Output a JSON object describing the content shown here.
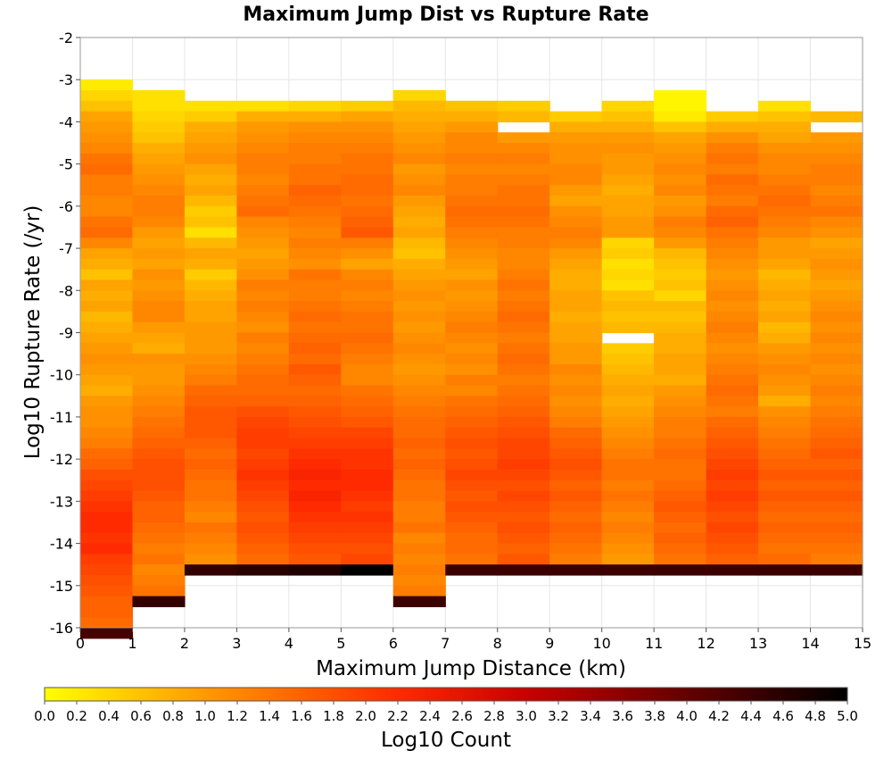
{
  "chart_data": {
    "type": "heatmap",
    "title": "Maximum Jump Dist vs Rupture Rate",
    "xlabel": "Maximum Jump Distance (km)",
    "ylabel": "Log10 Rupture Rate (/yr)",
    "xlim": [
      0,
      15
    ],
    "ylim": [
      -16,
      -2
    ],
    "x_ticks": [
      "0",
      "1",
      "2",
      "3",
      "4",
      "5",
      "6",
      "7",
      "8",
      "9",
      "10",
      "11",
      "12",
      "13",
      "14",
      "15"
    ],
    "y_ticks": [
      "-2",
      "-3",
      "-4",
      "-5",
      "-6",
      "-7",
      "-8",
      "-9",
      "-10",
      "-11",
      "-12",
      "-13",
      "-14",
      "-15",
      "-16"
    ],
    "x_bin_width": 1,
    "y_bin_height": 0.25,
    "colorbar": {
      "label": "Log10 Count",
      "min": 0.0,
      "max": 5.0,
      "ticks": [
        "0.0",
        "0.2",
        "0.4",
        "0.6",
        "0.8",
        "1.0",
        "1.2",
        "1.4",
        "1.6",
        "1.8",
        "2.0",
        "2.2",
        "2.4",
        "2.6",
        "2.8",
        "3.0",
        "3.2",
        "3.4",
        "3.6",
        "3.8",
        "4.0",
        "4.2",
        "4.4",
        "4.6",
        "4.8",
        "5.0"
      ],
      "colors": [
        "#ffff00",
        "#ff9900",
        "#ff2a00",
        "#c80000",
        "#000000"
      ]
    },
    "columns": [
      {
        "x0": 0,
        "top": -3.0,
        "values": [
          0.2,
          0.4,
          0.6,
          0.9,
          1.0,
          1.1,
          1.2,
          1.4,
          1.5,
          1.3,
          1.3,
          1.2,
          1.2,
          1.4,
          1.5,
          1.2,
          0.9,
          0.8,
          0.6,
          0.9,
          0.8,
          0.9,
          0.7,
          0.8,
          0.9,
          1.0,
          1.1,
          1.0,
          0.9,
          0.8,
          1.0,
          1.1,
          1.1,
          1.2,
          1.3,
          1.5,
          1.6,
          1.8,
          1.9,
          2.0,
          2.1,
          2.2,
          2.2,
          2.1,
          2.2,
          2.0,
          1.9,
          1.8,
          1.7,
          1.6,
          1.6,
          1.5,
          4.3
        ]
      },
      {
        "x0": 1,
        "top": -3.25,
        "values": [
          0.3,
          0.3,
          0.4,
          0.5,
          0.6,
          0.8,
          0.9,
          1.0,
          1.1,
          1.2,
          1.3,
          1.3,
          1.2,
          1.0,
          0.9,
          1.0,
          0.9,
          1.1,
          1.0,
          1.1,
          1.2,
          1.2,
          1.0,
          0.9,
          0.8,
          1.1,
          1.0,
          1.0,
          1.1,
          1.2,
          1.3,
          1.4,
          1.5,
          1.6,
          1.7,
          1.8,
          1.8,
          1.8,
          1.7,
          1.6,
          1.6,
          1.5,
          1.4,
          1.3,
          1.4,
          1.2,
          1.3,
          1.4,
          4.5
        ]
      },
      {
        "x0": 2,
        "top": -3.5,
        "values": [
          0.3,
          0.5,
          0.8,
          0.9,
          1.0,
          1.1,
          0.9,
          0.8,
          0.9,
          0.7,
          0.5,
          0.6,
          0.3,
          0.7,
          0.9,
          0.8,
          0.5,
          0.7,
          0.8,
          0.9,
          0.9,
          1.0,
          1.0,
          1.0,
          1.1,
          1.2,
          1.3,
          1.5,
          1.6,
          1.7,
          1.7,
          1.7,
          1.6,
          1.5,
          1.6,
          1.5,
          1.4,
          1.4,
          1.3,
          1.2,
          1.4,
          1.3,
          1.2,
          1.1,
          4.5
        ]
      },
      {
        "x0": 3,
        "top": -3.5,
        "values": [
          0.3,
          0.8,
          1.0,
          1.1,
          1.2,
          1.3,
          1.3,
          1.2,
          1.3,
          1.4,
          1.5,
          1.2,
          1.1,
          1.0,
          0.9,
          1.0,
          1.1,
          1.3,
          1.2,
          1.3,
          1.2,
          1.1,
          1.3,
          1.2,
          1.3,
          1.4,
          1.5,
          1.5,
          1.6,
          1.8,
          1.9,
          2.0,
          2.0,
          1.9,
          2.0,
          2.1,
          2.0,
          1.9,
          1.8,
          1.7,
          1.8,
          1.7,
          1.6,
          1.5,
          4.6
        ]
      },
      {
        "x0": 4,
        "top": -3.5,
        "values": [
          0.4,
          0.8,
          1.1,
          1.2,
          1.3,
          1.3,
          1.4,
          1.4,
          1.6,
          1.5,
          1.4,
          1.3,
          1.2,
          1.3,
          1.2,
          1.1,
          1.4,
          1.3,
          1.3,
          1.4,
          1.5,
          1.4,
          1.5,
          1.6,
          1.5,
          1.7,
          1.6,
          1.5,
          1.6,
          1.7,
          1.8,
          1.9,
          2.0,
          2.1,
          2.2,
          2.3,
          2.2,
          2.3,
          2.2,
          2.1,
          2.0,
          1.9,
          1.8,
          1.7,
          4.7
        ]
      },
      {
        "x0": 5,
        "top": -3.5,
        "values": [
          0.5,
          0.9,
          1.1,
          1.2,
          1.3,
          1.4,
          1.4,
          1.5,
          1.5,
          1.4,
          1.5,
          1.6,
          1.7,
          1.3,
          1.1,
          0.9,
          1.2,
          1.3,
          1.2,
          1.3,
          1.4,
          1.4,
          1.5,
          1.4,
          1.3,
          1.2,
          1.2,
          1.4,
          1.5,
          1.6,
          1.7,
          1.9,
          2.0,
          2.1,
          2.1,
          2.2,
          2.2,
          2.1,
          2.0,
          2.1,
          2.0,
          1.9,
          1.8,
          1.9,
          5.0
        ]
      },
      {
        "x0": 6,
        "top": -3.25,
        "values": [
          0.4,
          0.7,
          0.8,
          0.9,
          1.0,
          1.1,
          1.2,
          1.0,
          1.1,
          1.2,
          1.0,
          0.9,
          0.8,
          0.9,
          0.7,
          0.6,
          0.8,
          0.9,
          1.0,
          1.1,
          1.0,
          1.1,
          1.0,
          1.1,
          1.2,
          1.1,
          1.0,
          1.1,
          1.2,
          1.3,
          1.4,
          1.5,
          1.5,
          1.6,
          1.5,
          1.6,
          1.5,
          1.4,
          1.4,
          1.3,
          1.3,
          1.4,
          1.2,
          1.3,
          1.2,
          1.3,
          1.2,
          1.3,
          4.4
        ]
      },
      {
        "x0": 7,
        "top": -3.5,
        "values": [
          0.6,
          0.8,
          1.0,
          1.2,
          1.2,
          1.3,
          1.2,
          1.3,
          1.3,
          1.4,
          1.5,
          1.4,
          1.3,
          1.2,
          1.1,
          1.0,
          0.9,
          1.1,
          1.0,
          1.1,
          1.2,
          1.3,
          1.2,
          1.1,
          1.2,
          1.1,
          1.3,
          1.2,
          1.4,
          1.5,
          1.6,
          1.7,
          1.8,
          1.7,
          1.8,
          1.9,
          1.8,
          1.7,
          1.8,
          1.7,
          1.6,
          1.5,
          1.5,
          1.4,
          4.4
        ]
      },
      {
        "x0": 8,
        "top": -3.5,
        "values": [
          0.5,
          0.7,
          null,
          1.0,
          1.2,
          1.3,
          1.2,
          1.3,
          1.4,
          1.4,
          1.5,
          1.4,
          1.3,
          1.3,
          1.2,
          1.2,
          1.3,
          1.4,
          1.3,
          1.4,
          1.5,
          1.4,
          1.3,
          1.4,
          1.5,
          1.4,
          1.3,
          1.4,
          1.5,
          1.6,
          1.7,
          1.8,
          1.9,
          1.9,
          2.0,
          1.9,
          1.8,
          1.9,
          1.8,
          1.7,
          1.8,
          1.7,
          1.6,
          1.7,
          4.4
        ]
      },
      {
        "x0": 9,
        "top": -3.75,
        "values": [
          0.5,
          0.8,
          1.0,
          1.1,
          1.1,
          1.2,
          1.2,
          1.0,
          0.9,
          1.1,
          1.2,
          1.3,
          1.2,
          1.0,
          0.9,
          0.8,
          0.8,
          0.9,
          0.9,
          0.8,
          0.9,
          0.9,
          1.0,
          1.0,
          1.2,
          1.1,
          1.2,
          1.1,
          1.2,
          1.3,
          1.5,
          1.6,
          1.7,
          1.8,
          1.7,
          1.6,
          1.7,
          1.6,
          1.5,
          1.6,
          1.5,
          1.4,
          1.3,
          4.4
        ]
      },
      {
        "x0": 10,
        "top": -3.5,
        "values": [
          0.4,
          0.6,
          0.8,
          1.0,
          1.1,
          1.0,
          1.0,
          0.9,
          0.8,
          0.9,
          0.9,
          1.0,
          1.0,
          0.4,
          0.5,
          0.3,
          0.4,
          0.3,
          0.6,
          0.7,
          0.6,
          0.7,
          null,
          0.5,
          0.6,
          0.7,
          0.8,
          0.9,
          0.8,
          0.9,
          1.0,
          1.1,
          1.2,
          1.3,
          1.4,
          1.4,
          1.3,
          1.4,
          1.3,
          1.2,
          1.3,
          1.2,
          1.1,
          1.0,
          4.4
        ]
      },
      {
        "x0": 11,
        "top": -3.25,
        "values": [
          0.1,
          0.1,
          0.2,
          0.6,
          0.9,
          1.0,
          1.1,
          1.2,
          1.1,
          1.2,
          1.0,
          1.1,
          1.3,
          1.2,
          1.0,
          0.7,
          0.6,
          0.5,
          0.6,
          0.4,
          0.7,
          0.6,
          0.7,
          0.8,
          0.8,
          0.9,
          0.9,
          0.8,
          1.0,
          1.1,
          1.2,
          1.3,
          1.3,
          1.4,
          1.5,
          1.4,
          1.4,
          1.5,
          1.6,
          1.7,
          1.6,
          1.5,
          1.6,
          1.5,
          1.4,
          4.4
        ]
      },
      {
        "x0": 12,
        "top": -3.75,
        "values": [
          0.5,
          0.8,
          1.1,
          1.3,
          1.4,
          1.3,
          1.5,
          1.4,
          1.3,
          1.5,
          1.6,
          1.4,
          1.3,
          1.2,
          1.1,
          1.0,
          1.1,
          1.2,
          1.1,
          1.2,
          1.3,
          1.2,
          1.1,
          1.2,
          1.3,
          1.4,
          1.5,
          1.4,
          1.3,
          1.5,
          1.6,
          1.7,
          1.8,
          1.9,
          2.0,
          1.9,
          2.0,
          1.9,
          1.8,
          1.9,
          1.8,
          1.7,
          1.6,
          4.4
        ]
      },
      {
        "x0": 13,
        "top": -3.5,
        "values": [
          0.3,
          0.6,
          0.8,
          0.9,
          1.1,
          1.2,
          1.2,
          1.3,
          1.4,
          1.5,
          1.4,
          1.3,
          1.2,
          1.0,
          1.0,
          0.9,
          0.7,
          0.8,
          0.9,
          0.8,
          0.9,
          0.7,
          0.8,
          1.0,
          1.1,
          1.2,
          1.1,
          1.0,
          0.8,
          1.1,
          1.2,
          1.3,
          1.4,
          1.5,
          1.6,
          1.7,
          1.6,
          1.7,
          1.6,
          1.5,
          1.6,
          1.5,
          1.4,
          1.5,
          4.4
        ]
      },
      {
        "x0": 14,
        "top": -3.75,
        "values": [
          0.7,
          null,
          1.0,
          1.1,
          1.2,
          1.3,
          1.3,
          1.2,
          1.3,
          1.4,
          1.2,
          1.1,
          0.9,
          1.0,
          1.1,
          1.0,
          0.9,
          1.0,
          1.1,
          1.2,
          1.1,
          1.2,
          1.1,
          1.2,
          1.1,
          1.2,
          1.3,
          1.2,
          1.3,
          1.4,
          1.5,
          1.6,
          1.7,
          1.6,
          1.7,
          1.6,
          1.7,
          1.6,
          1.5,
          1.6,
          1.5,
          1.4,
          1.3,
          4.4
        ]
      }
    ]
  }
}
